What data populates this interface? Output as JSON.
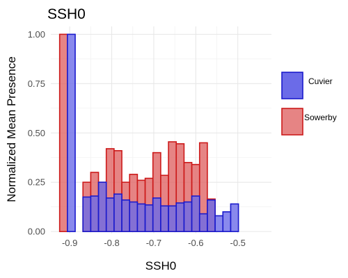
{
  "chart_data": {
    "type": "bar",
    "title": "SSH0",
    "xlabel": "SSH0",
    "ylabel": "Normalized Mean Presence",
    "xlim": [
      -0.945,
      -0.42
    ],
    "ylim": [
      -0.01,
      1.04
    ],
    "x_ticks": [
      -0.9,
      -0.8,
      -0.7,
      -0.6,
      -0.5
    ],
    "x_tick_labels": [
      "-0.9",
      "-0.8",
      "-0.7",
      "-0.6",
      "-0.5"
    ],
    "y_ticks": [
      0,
      0.25,
      0.5,
      0.75,
      1
    ],
    "y_tick_labels": [
      "0.00",
      "0.25",
      "0.50",
      "0.75",
      "1.00"
    ],
    "grid": true,
    "legend_position": "right",
    "bin_width": 0.0185,
    "series": [
      {
        "name": "Cuvier",
        "fill": "#6b6be8",
        "stroke": "#1a1acc",
        "x_start": [
          -0.9055,
          -0.887,
          -0.8685,
          -0.85,
          -0.8315,
          -0.813,
          -0.7945,
          -0.776,
          -0.7575,
          -0.739,
          -0.7205,
          -0.702,
          -0.6835,
          -0.665,
          -0.6465,
          -0.628,
          -0.6095,
          -0.591,
          -0.5725,
          -0.554,
          -0.5355,
          -0.517,
          -0.4985,
          -0.48,
          -0.4615,
          -0.443
        ],
        "values": [
          1.0,
          0.0,
          0.175,
          0.18,
          0.25,
          0.17,
          0.19,
          0.16,
          0.15,
          0.14,
          0.135,
          0.17,
          0.13,
          0.13,
          0.145,
          0.15,
          0.18,
          0.09,
          0.16,
          0.08,
          0.1,
          0.14,
          0.0,
          0.0,
          0.0,
          0.0
        ]
      },
      {
        "name": "Sowerby",
        "fill": "#e06565",
        "stroke": "#cc1a1a",
        "x_start": [
          -0.924,
          -0.887,
          -0.8685,
          -0.85,
          -0.8315,
          -0.813,
          -0.7945,
          -0.776,
          -0.7575,
          -0.739,
          -0.7205,
          -0.702,
          -0.6835,
          -0.665,
          -0.6465,
          -0.628,
          -0.6095,
          -0.591,
          -0.5725,
          -0.554,
          -0.5355,
          -0.517,
          -0.4985
        ],
        "values": [
          1.0,
          0.0,
          0.25,
          0.3,
          0.25,
          0.42,
          0.41,
          0.25,
          0.29,
          0.26,
          0.27,
          0.4,
          0.285,
          0.455,
          0.445,
          0.35,
          0.34,
          0.45,
          0.165,
          0.0,
          0.0,
          0.0,
          0.0
        ]
      }
    ]
  }
}
